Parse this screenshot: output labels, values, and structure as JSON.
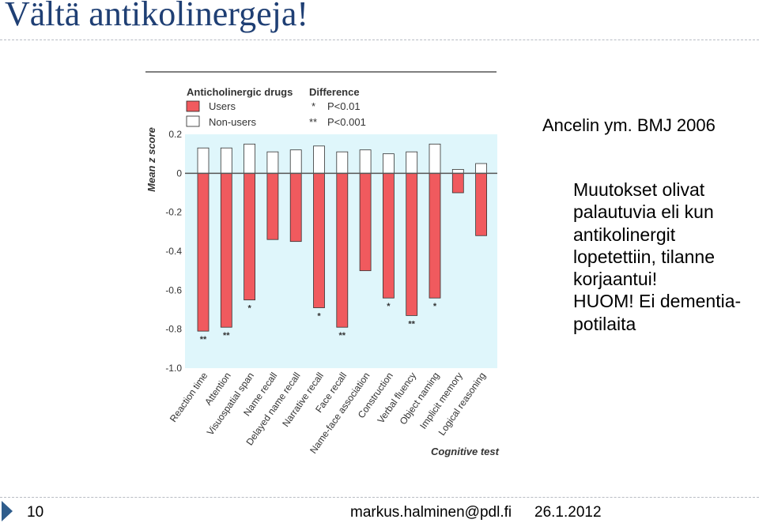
{
  "slide": {
    "title": "Vältä antikolinergeja!",
    "citation": "Ancelin ym. BMJ 2006",
    "body_lines": [
      "Muutokset olivat",
      "palautuvia eli kun",
      "antikolinergit",
      "lopetettiin, tilanne",
      "korjaantui!",
      "HUOM! Ei dementia-",
      "potilaita"
    ]
  },
  "footer": {
    "page_number": "10",
    "email": "markus.halminen@pdl.fi",
    "date": "26.1.2012"
  },
  "chart_data": {
    "type": "bar",
    "ylabel": "Mean z score",
    "xlabel": "Cognitive test",
    "ylim": [
      -1.0,
      0.2
    ],
    "yticks": [
      "0.2",
      "0",
      "-0.2",
      "-0.4",
      "-0.6",
      "-0.8",
      "-1.0"
    ],
    "grid": false,
    "legend": {
      "title": "Anticholinergic drugs",
      "users_label": "Users",
      "nonusers_label": "Non-users",
      "difference_title": "Difference",
      "sig1_symbol": "*",
      "sig1_label": "P<0.01",
      "sig2_symbol": "**",
      "sig2_label": "P<0.001"
    },
    "colors": {
      "users": "#f05a5e",
      "nonusers": "#ffffff",
      "plot_bg": "#dff6fb"
    },
    "categories": [
      "Reaction time",
      "Attention",
      "Visuospatial span",
      "Name recall",
      "Delayed name recall",
      "Narrative recall",
      "Face recall",
      "Name-face association",
      "Construction",
      "Verbal fluency",
      "Object naming",
      "Implicit memory",
      "Logical reasoning"
    ],
    "series": [
      {
        "name": "Users",
        "values": [
          -0.81,
          -0.79,
          -0.65,
          -0.34,
          -0.35,
          -0.69,
          -0.79,
          -0.5,
          -0.64,
          -0.73,
          -0.64,
          -0.1,
          -0.32
        ]
      },
      {
        "name": "Non-users",
        "values": [
          0.13,
          0.13,
          0.15,
          0.11,
          0.12,
          0.14,
          0.11,
          0.12,
          0.1,
          0.11,
          0.15,
          0.02,
          0.05
        ]
      }
    ],
    "significance": [
      "**",
      "**",
      "*",
      "",
      "",
      "*",
      "**",
      "",
      "*",
      "**",
      "*",
      "",
      ""
    ]
  }
}
